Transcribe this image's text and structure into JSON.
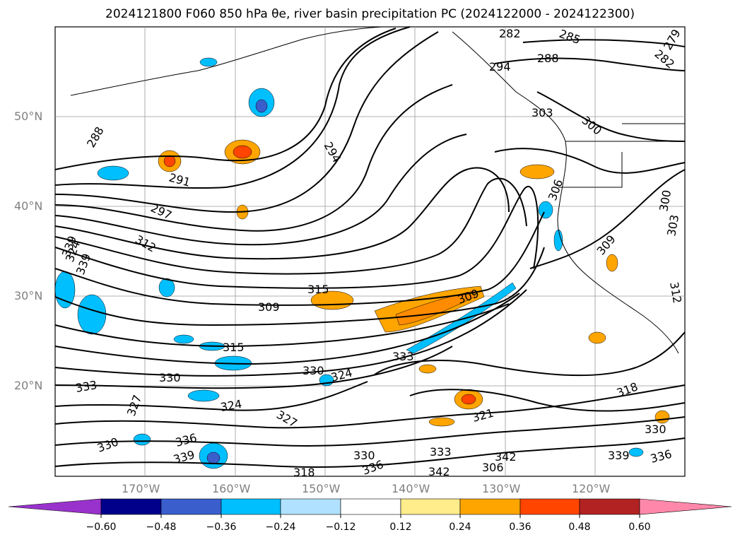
{
  "title": "2024121800 F060 850 hPa θe, river basin precipitation PC (2024122000 - 2024122300)",
  "map": {
    "lat_labels": [
      "50°N",
      "40°N",
      "30°N",
      "20°N"
    ],
    "lon_labels": [
      "170°W",
      "160°W",
      "150°W",
      "140°W",
      "130°W",
      "120°W"
    ],
    "contour_labels": [
      "282",
      "285",
      "288",
      "294",
      "279",
      "282",
      "288",
      "291",
      "294",
      "297",
      "300",
      "303",
      "306",
      "309",
      "312",
      "315",
      "309",
      "315",
      "318",
      "321",
      "324",
      "327",
      "330",
      "333",
      "336",
      "339",
      "342",
      "330",
      "324",
      "324",
      "327",
      "330",
      "333",
      "336",
      "339",
      "300",
      "303",
      "306",
      "309",
      "312",
      "318",
      "330",
      "336",
      "339",
      "339",
      "330",
      "333",
      "342"
    ]
  },
  "colorbar": {
    "ticks": [
      "−0.60",
      "−0.48",
      "−0.36",
      "−0.24",
      "−0.12",
      "0.12",
      "0.24",
      "0.36",
      "0.48",
      "0.60"
    ],
    "colors": [
      "#9932cc",
      "#00008b",
      "#3a5fcd",
      "#00bfff",
      "#b0e2ff",
      "#ffffff",
      "#ffec8b",
      "#ffa500",
      "#ff4500",
      "#b22222",
      "#ff88aa"
    ]
  },
  "chart_data": {
    "type": "contour-map",
    "variable": "850 hPa theta-e (K) with precipitation PC shading",
    "xrange": [
      "180°",
      "110°W"
    ],
    "yrange": [
      "10°N",
      "60°N"
    ],
    "levels": [
      -0.6,
      -0.48,
      -0.36,
      -0.24,
      -0.12,
      0.12,
      0.24,
      0.36,
      0.48,
      0.6
    ]
  }
}
